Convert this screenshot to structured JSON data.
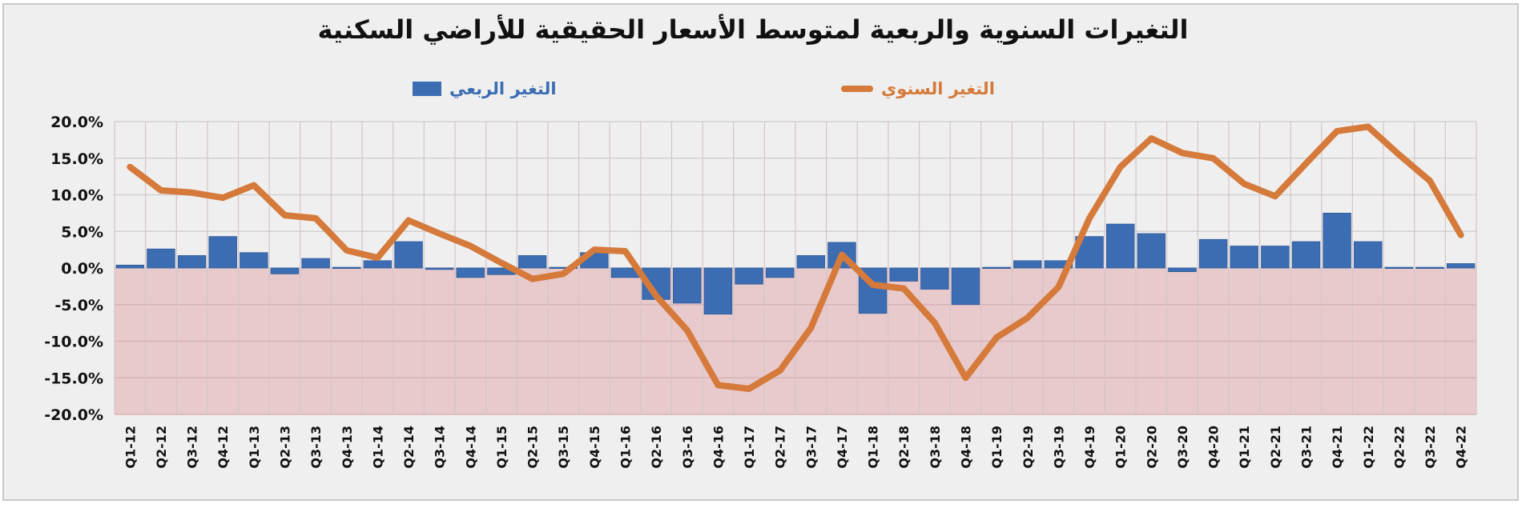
{
  "title": "التغيرات السنوية والربعية لمتوسط الأسعار الحقيقية للأراضي السكنية",
  "legend": {
    "annual": "التغير السنوي",
    "quarterly": "التغير الربعي"
  },
  "colors": {
    "annual_line": "#d57a3a",
    "quarterly_bar": "#3c6db3",
    "negative_band": "#e8cacc",
    "plot_bg": "#efefef",
    "grid": "#d2d2d2"
  },
  "chart_data": {
    "type": "bar+line",
    "title": "التغيرات السنوية والربعية لمتوسط الأسعار الحقيقية للأراضي السكنية",
    "xlabel": "",
    "ylabel": "",
    "ylim": [
      -20,
      20
    ],
    "yticks": [
      "20.0%",
      "15.0%",
      "10.0%",
      "5.0%",
      "0.0%",
      "-5.0%",
      "-10.0%",
      "-15.0%",
      "-20.0%"
    ],
    "grid": true,
    "legend_position": "top",
    "categories": [
      "Q1-12",
      "Q2-12",
      "Q3-12",
      "Q4-12",
      "Q1-13",
      "Q2-13",
      "Q3-13",
      "Q4-13",
      "Q1-14",
      "Q2-14",
      "Q3-14",
      "Q4-14",
      "Q1-15",
      "Q2-15",
      "Q3-15",
      "Q4-15",
      "Q1-16",
      "Q2-16",
      "Q3-16",
      "Q4-16",
      "Q1-17",
      "Q2-17",
      "Q3-17",
      "Q4-17",
      "Q1-18",
      "Q2-18",
      "Q3-18",
      "Q4-18",
      "Q1-19",
      "Q2-19",
      "Q3-19",
      "Q4-19",
      "Q1-20",
      "Q2-20",
      "Q3-20",
      "Q4-20",
      "Q1-21",
      "Q2-21",
      "Q3-21",
      "Q4-21",
      "Q1-22",
      "Q2-22",
      "Q3-22",
      "Q4-22"
    ],
    "series": [
      {
        "name": "التغير الربعي",
        "type": "bar",
        "values": [
          0.4,
          2.6,
          1.7,
          4.3,
          2.1,
          -0.8,
          1.3,
          0.1,
          1.0,
          3.6,
          -0.2,
          -1.3,
          -0.9,
          1.7,
          0.1,
          2.1,
          -1.3,
          -4.3,
          -4.8,
          -6.3,
          -2.2,
          -1.3,
          1.7,
          3.5,
          -6.2,
          -1.8,
          -2.9,
          -5.0,
          0.1,
          1.0,
          1.0,
          4.3,
          6.0,
          4.7,
          -0.5,
          3.9,
          3.0,
          3.0,
          3.6,
          7.5,
          3.6,
          0.1,
          0.1,
          0.6
        ]
      },
      {
        "name": "التغير السنوي",
        "type": "line",
        "values": [
          13.8,
          10.6,
          10.3,
          9.6,
          11.3,
          7.2,
          6.8,
          2.4,
          1.4,
          6.5,
          4.7,
          3.0,
          0.7,
          -1.5,
          -0.8,
          2.5,
          2.3,
          -3.8,
          -8.5,
          -16.0,
          -16.5,
          -14.0,
          -8.2,
          1.8,
          -2.3,
          -2.8,
          -7.5,
          -15.0,
          -9.5,
          -6.8,
          -2.6,
          6.8,
          13.8,
          17.7,
          15.7,
          15.0,
          11.5,
          9.8,
          14.3,
          18.7,
          19.3,
          15.5,
          11.9,
          4.5
        ]
      }
    ]
  }
}
